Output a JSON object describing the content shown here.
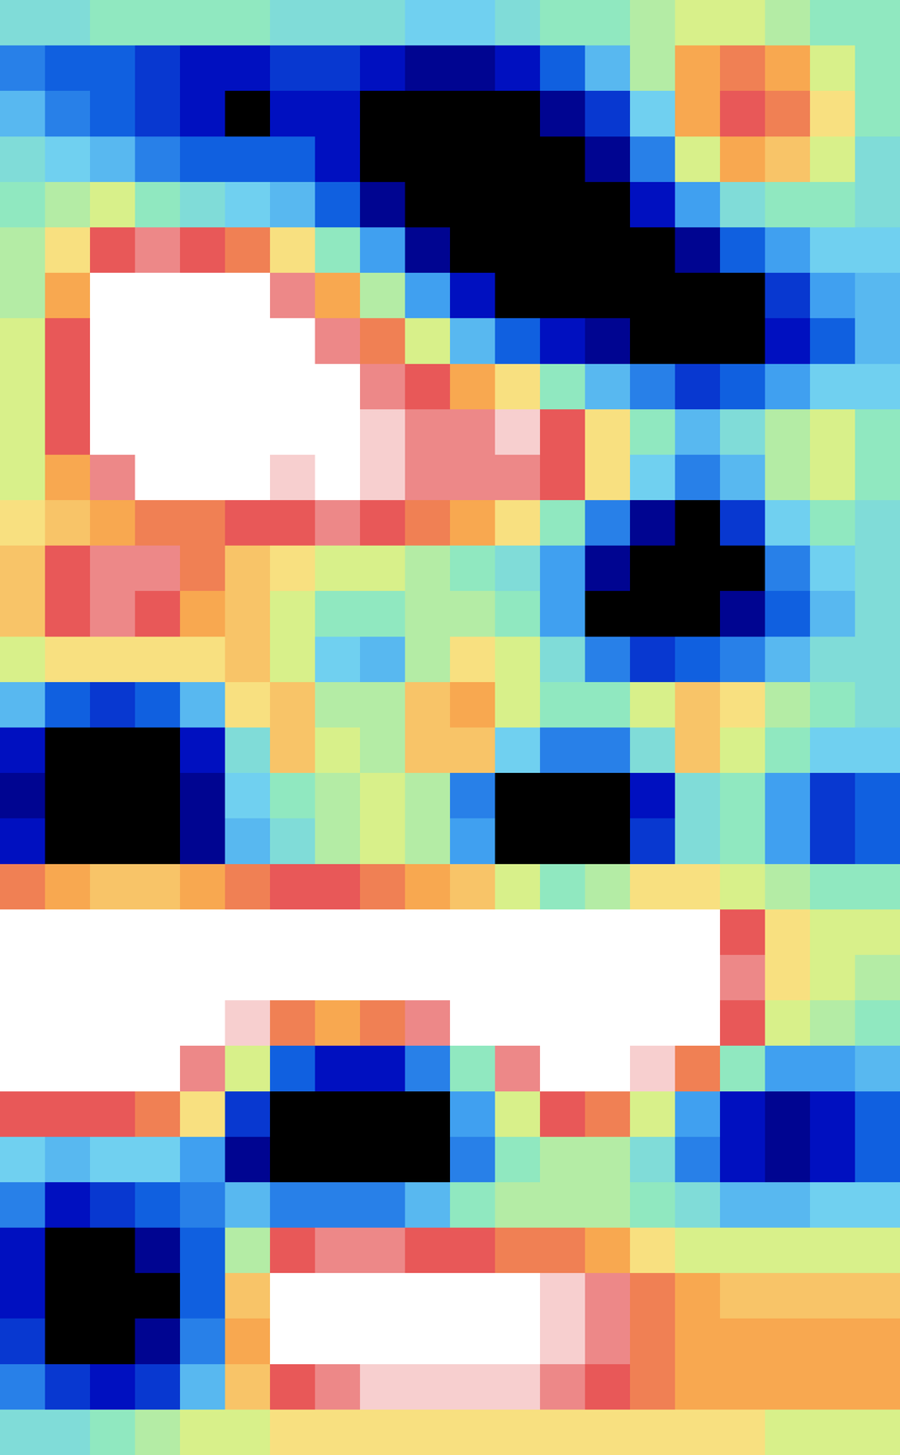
{
  "chart_data": {
    "type": "heatmap",
    "zlim": [
      -10,
      10
    ],
    "tick_labels": false,
    "values": [
      [
        -1,
        -1,
        0,
        0,
        0,
        0,
        -1,
        -1,
        -1,
        -2,
        -2,
        -1,
        0,
        0,
        1,
        2,
        2,
        1,
        0,
        0
      ],
      [
        -5,
        -6,
        -6,
        -7,
        -8,
        -8,
        -7,
        -7,
        -8,
        -9,
        -9,
        -8,
        -6,
        -3,
        1,
        5,
        6,
        5,
        2,
        0
      ],
      [
        -3,
        -5,
        -6,
        -7,
        -8,
        -10,
        -8,
        -8,
        -10,
        -10,
        -10,
        -10,
        -9,
        -7,
        -2,
        5,
        7,
        6,
        3,
        0
      ],
      [
        -1,
        -2,
        -3,
        -5,
        -6,
        -6,
        -6,
        -8,
        -10,
        -10,
        -10,
        -10,
        -10,
        -9,
        -5,
        2,
        5,
        4,
        2,
        -1
      ],
      [
        0,
        1,
        2,
        0,
        -1,
        -2,
        -3,
        -6,
        -9,
        -10,
        -10,
        -10,
        -10,
        -10,
        -8,
        -4,
        -1,
        0,
        0,
        -1
      ],
      [
        1,
        3,
        7,
        8,
        7,
        6,
        3,
        0,
        -4,
        -9,
        -10,
        -10,
        -10,
        -10,
        -10,
        -9,
        -6,
        -4,
        -2,
        -2
      ],
      [
        1,
        5,
        10,
        10,
        10,
        10,
        8,
        5,
        1,
        -4,
        -8,
        -10,
        -10,
        -10,
        -10,
        -10,
        -10,
        -7,
        -4,
        -3
      ],
      [
        2,
        7,
        10,
        10,
        10,
        10,
        10,
        8,
        6,
        2,
        -3,
        -6,
        -8,
        -9,
        -10,
        -10,
        -10,
        -8,
        -6,
        -3
      ],
      [
        2,
        7,
        10,
        10,
        10,
        10,
        10,
        10,
        8,
        7,
        5,
        3,
        0,
        -3,
        -5,
        -7,
        -6,
        -4,
        -2,
        -2
      ],
      [
        2,
        7,
        10,
        10,
        10,
        10,
        10,
        10,
        9,
        8,
        8,
        9,
        7,
        3,
        0,
        -3,
        -1,
        1,
        2,
        0
      ],
      [
        2,
        5,
        8,
        10,
        10,
        10,
        9,
        10,
        9,
        8,
        8,
        8,
        7,
        3,
        -2,
        -5,
        -3,
        1,
        2,
        0
      ],
      [
        3,
        4,
        5,
        6,
        6,
        7,
        7,
        8,
        7,
        6,
        5,
        3,
        0,
        -5,
        -9,
        -10,
        -7,
        -2,
        0,
        -1
      ],
      [
        4,
        7,
        8,
        8,
        6,
        4,
        3,
        2,
        2,
        1,
        0,
        -1,
        -4,
        -9,
        -10,
        -10,
        -10,
        -5,
        -2,
        -1
      ],
      [
        4,
        7,
        8,
        7,
        5,
        4,
        2,
        0,
        0,
        1,
        1,
        0,
        -4,
        -10,
        -10,
        -10,
        -9,
        -6,
        -3,
        -1
      ],
      [
        2,
        3,
        3,
        3,
        3,
        4,
        2,
        -2,
        -3,
        1,
        3,
        2,
        -1,
        -5,
        -7,
        -6,
        -5,
        -3,
        -1,
        -1
      ],
      [
        -3,
        -6,
        -7,
        -6,
        -3,
        3,
        4,
        1,
        1,
        4,
        5,
        2,
        0,
        0,
        2,
        4,
        3,
        1,
        0,
        -1
      ],
      [
        -8,
        -10,
        -10,
        -10,
        -8,
        -1,
        4,
        2,
        1,
        4,
        4,
        -2,
        -5,
        -5,
        -1,
        4,
        2,
        0,
        -2,
        -2
      ],
      [
        -9,
        -10,
        -10,
        -10,
        -9,
        -2,
        0,
        1,
        2,
        1,
        -5,
        -10,
        -10,
        -10,
        -8,
        -1,
        0,
        -4,
        -7,
        -6
      ],
      [
        -8,
        -10,
        -10,
        -10,
        -9,
        -3,
        -1,
        1,
        2,
        1,
        -4,
        -10,
        -10,
        -10,
        -7,
        -1,
        0,
        -4,
        -7,
        -6
      ],
      [
        6,
        5,
        4,
        4,
        5,
        6,
        7,
        7,
        6,
        5,
        4,
        2,
        0,
        1,
        3,
        3,
        2,
        1,
        0,
        0
      ],
      [
        10,
        10,
        10,
        10,
        10,
        10,
        10,
        10,
        10,
        10,
        10,
        10,
        10,
        10,
        10,
        10,
        7,
        3,
        2,
        2
      ],
      [
        10,
        10,
        10,
        10,
        10,
        10,
        10,
        10,
        10,
        10,
        10,
        10,
        10,
        10,
        10,
        10,
        8,
        3,
        2,
        1
      ],
      [
        10,
        10,
        10,
        10,
        10,
        9,
        6,
        5,
        6,
        8,
        10,
        10,
        10,
        10,
        10,
        10,
        7,
        2,
        1,
        0
      ],
      [
        10,
        10,
        10,
        10,
        8,
        2,
        -6,
        -8,
        -8,
        -5,
        0,
        8,
        10,
        10,
        9,
        6,
        0,
        -4,
        -4,
        -3
      ],
      [
        7,
        7,
        7,
        6,
        3,
        -7,
        -10,
        -10,
        -10,
        -10,
        -4,
        2,
        7,
        6,
        2,
        -4,
        -8,
        -9,
        -8,
        -6
      ],
      [
        -2,
        -3,
        -2,
        -2,
        -4,
        -9,
        -10,
        -10,
        -10,
        -10,
        -5,
        0,
        1,
        1,
        -1,
        -5,
        -8,
        -9,
        -8,
        -6
      ],
      [
        -5,
        -8,
        -7,
        -6,
        -5,
        -3,
        -5,
        -5,
        -5,
        -3,
        0,
        1,
        1,
        1,
        0,
        -1,
        -3,
        -3,
        -2,
        -2
      ],
      [
        -8,
        -10,
        -10,
        -9,
        -6,
        1,
        7,
        8,
        8,
        7,
        7,
        6,
        6,
        5,
        3,
        2,
        2,
        2,
        2,
        2
      ],
      [
        -8,
        -10,
        -10,
        -10,
        -6,
        4,
        10,
        10,
        10,
        10,
        10,
        10,
        9,
        8,
        6,
        5,
        4,
        4,
        4,
        4
      ],
      [
        -7,
        -10,
        -10,
        -9,
        -5,
        5,
        10,
        10,
        10,
        10,
        10,
        10,
        9,
        8,
        6,
        5,
        5,
        5,
        5,
        5
      ],
      [
        -5,
        -7,
        -8,
        -7,
        -3,
        4,
        7,
        8,
        9,
        9,
        9,
        9,
        8,
        7,
        6,
        5,
        5,
        5,
        5,
        5
      ],
      [
        -1,
        -1,
        0,
        1,
        2,
        2,
        3,
        3,
        3,
        3,
        3,
        3,
        3,
        3,
        3,
        3,
        3,
        2,
        2,
        2
      ]
    ]
  }
}
